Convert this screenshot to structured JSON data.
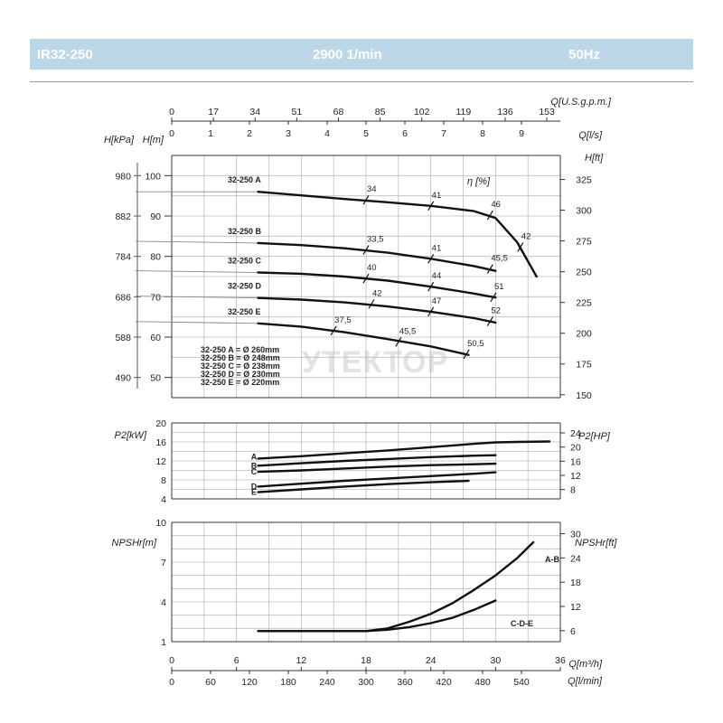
{
  "header": {
    "model": "IR32-250",
    "speed": "2900 1/min",
    "frequency": "50Hz"
  },
  "watermark": "УТЕКТОР",
  "chart_data": [
    {
      "id": "head",
      "type": "line",
      "axes": {
        "left_inner": {
          "label": "H[m]",
          "range": [
            45,
            105
          ],
          "ticks": [
            50,
            60,
            70,
            80,
            90,
            100
          ]
        },
        "left_outer": {
          "label": "H[kPa]",
          "ticks": [
            490,
            588,
            686,
            784,
            882,
            980
          ]
        },
        "right": {
          "label": "H[ft]",
          "range": [
            150,
            325
          ],
          "ticks": [
            150,
            175,
            200,
            225,
            250,
            275,
            300,
            325
          ]
        },
        "top_outer": {
          "label": "Q[U.S.g.p.m.]",
          "ticks": [
            0,
            17,
            34,
            51,
            68,
            85,
            102,
            119,
            136,
            153
          ]
        },
        "top_inner": {
          "label": "Q[l/s]",
          "ticks": [
            0,
            1,
            2,
            3,
            4,
            5,
            6,
            7,
            8,
            9
          ]
        },
        "x_range_m3h": [
          0,
          36
        ]
      },
      "efficiency_label": "η [%]",
      "series": [
        {
          "name": "32-250 A",
          "x": [
            8,
            12,
            16,
            20,
            24,
            28,
            30,
            32,
            33.8
          ],
          "y": [
            96,
            95.1,
            94.2,
            93.4,
            92.5,
            91.2,
            89.5,
            83.5,
            75
          ]
        },
        {
          "name": "32-250 B",
          "x": [
            8,
            12,
            16,
            20,
            24,
            28,
            30
          ],
          "y": [
            83.3,
            82.8,
            82,
            80.9,
            79.4,
            77.6,
            76.4
          ]
        },
        {
          "name": "32-250 C",
          "x": [
            8,
            12,
            16,
            20,
            24,
            28,
            30
          ],
          "y": [
            76,
            75.7,
            75,
            74,
            72.5,
            70.8,
            69.8
          ]
        },
        {
          "name": "32-250 D",
          "x": [
            8,
            12,
            16,
            20,
            24,
            28,
            30
          ],
          "y": [
            69.7,
            69.3,
            68.6,
            67.6,
            66.3,
            64.7,
            63.6
          ]
        },
        {
          "name": "32-250 E",
          "x": [
            8,
            12,
            16,
            20,
            24,
            27.5
          ],
          "y": [
            63.4,
            62.6,
            61.2,
            59.5,
            57.7,
            55.6
          ]
        }
      ],
      "efficiency_marks": [
        {
          "value": "34",
          "x": 18,
          "y": 94.0
        },
        {
          "value": "41",
          "x": 24,
          "y": 92.5
        },
        {
          "value": "46",
          "x": 29.5,
          "y": 90.2
        },
        {
          "value": "42",
          "x": 32.3,
          "y": 82.3
        },
        {
          "value": "33,5",
          "x": 18,
          "y": 81.6
        },
        {
          "value": "41",
          "x": 24,
          "y": 79.4
        },
        {
          "value": "45,5",
          "x": 29.5,
          "y": 76.9
        },
        {
          "value": "40",
          "x": 18,
          "y": 74.5
        },
        {
          "value": "44",
          "x": 24,
          "y": 72.5
        },
        {
          "value": "51",
          "x": 29.8,
          "y": 69.9
        },
        {
          "value": "42",
          "x": 18.5,
          "y": 68.2
        },
        {
          "value": "47",
          "x": 24,
          "y": 66.3
        },
        {
          "value": "52",
          "x": 29.5,
          "y": 63.9
        },
        {
          "value": "37,5",
          "x": 15,
          "y": 61.6
        },
        {
          "value": "45,5",
          "x": 21,
          "y": 58.8
        },
        {
          "value": "50,5",
          "x": 27.3,
          "y": 55.8
        }
      ],
      "diameters": [
        "32-250 A = Ø 260mm",
        "32-250 B = Ø 248mm",
        "32-250 C = Ø 238mm",
        "32-250 D = Ø 230mm",
        "32-250 E = Ø 220mm"
      ]
    },
    {
      "id": "power",
      "type": "line",
      "axes": {
        "left": {
          "label": "P2[kW]",
          "range": [
            4,
            20
          ],
          "ticks": [
            4,
            8,
            12,
            16,
            20
          ]
        },
        "right": {
          "label": "P2[HP]",
          "ticks": [
            8,
            12,
            16,
            20,
            24
          ]
        }
      },
      "series": [
        {
          "name": "A",
          "x": [
            8,
            12,
            16,
            20,
            24,
            28,
            30,
            32,
            35
          ],
          "y": [
            12.5,
            13.0,
            13.6,
            14.2,
            14.9,
            15.6,
            15.9,
            16.0,
            16.1
          ]
        },
        {
          "name": "B",
          "x": [
            8,
            12,
            16,
            20,
            24,
            28,
            30
          ],
          "y": [
            11.0,
            11.5,
            12.0,
            12.4,
            12.8,
            13.1,
            13.2
          ]
        },
        {
          "name": "C",
          "x": [
            8,
            12,
            16,
            20,
            24,
            28,
            30
          ],
          "y": [
            9.7,
            10.0,
            10.4,
            10.8,
            11.1,
            11.3,
            11.4
          ]
        },
        {
          "name": "D",
          "x": [
            8,
            12,
            16,
            20,
            24,
            28,
            30
          ],
          "y": [
            6.6,
            7.2,
            7.8,
            8.3,
            8.8,
            9.3,
            9.6
          ]
        },
        {
          "name": "E",
          "x": [
            8,
            12,
            16,
            20,
            24,
            27.5
          ],
          "y": [
            5.4,
            6.0,
            6.6,
            7.1,
            7.5,
            7.8
          ]
        }
      ]
    },
    {
      "id": "npsh",
      "type": "line",
      "axes": {
        "left": {
          "label": "NPSHr[m]",
          "range": [
            1,
            10
          ],
          "ticks": [
            1,
            4,
            7,
            10
          ]
        },
        "right": {
          "label": "NPSHr[ft]",
          "ticks": [
            6,
            12,
            18,
            24,
            30
          ]
        },
        "bottom_inner": {
          "label": "Q[m³/h]",
          "range": [
            0,
            36
          ],
          "ticks": [
            0,
            6,
            12,
            18,
            24,
            30,
            36
          ]
        },
        "bottom_outer": {
          "label": "Q[l/min]",
          "ticks": [
            0,
            60,
            120,
            180,
            240,
            300,
            360,
            420,
            480,
            540
          ]
        }
      },
      "series": [
        {
          "name": "A-B",
          "x": [
            8,
            12,
            16,
            18,
            20,
            22,
            24,
            26,
            28,
            30,
            32,
            33.5
          ],
          "y": [
            1.8,
            1.8,
            1.8,
            1.8,
            2.0,
            2.5,
            3.1,
            3.9,
            4.9,
            6.0,
            7.3,
            8.5
          ]
        },
        {
          "name": "C-D-E",
          "x": [
            8,
            12,
            16,
            18,
            20,
            22,
            24,
            26,
            28,
            30
          ],
          "y": [
            1.8,
            1.8,
            1.8,
            1.8,
            1.9,
            2.1,
            2.4,
            2.8,
            3.4,
            4.1
          ]
        }
      ]
    }
  ]
}
